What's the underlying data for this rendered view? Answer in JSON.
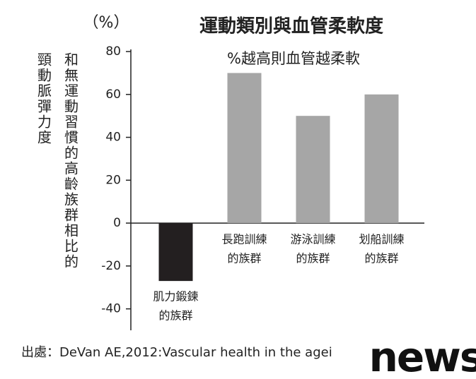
{
  "chart_data": {
    "type": "bar",
    "title": "運動類別與血管柔軟度",
    "unit": "（%）",
    "ylabel": [
      "和無運動習慣的高齡族群相比的",
      "頸動脈彈力度"
    ],
    "annotation": "%越高則血管越柔軟",
    "categories": [
      [
        "肌力鍛鍊",
        "的族群"
      ],
      [
        "長跑訓練",
        "的族群"
      ],
      [
        "游泳訓練",
        "的族群"
      ],
      [
        "划船訓練",
        "的族群"
      ]
    ],
    "values": [
      -27,
      70,
      50,
      60
    ],
    "colors": [
      "#231f20",
      "#a6a6a6",
      "#a6a6a6",
      "#a6a6a6"
    ],
    "ylim": [
      -50,
      81
    ],
    "yticks": [
      -40,
      -20,
      0,
      20,
      40,
      60,
      80
    ],
    "grid": false,
    "source": "出處：DeVan AE,2012:Vascular health in the agei",
    "logo": "news"
  }
}
